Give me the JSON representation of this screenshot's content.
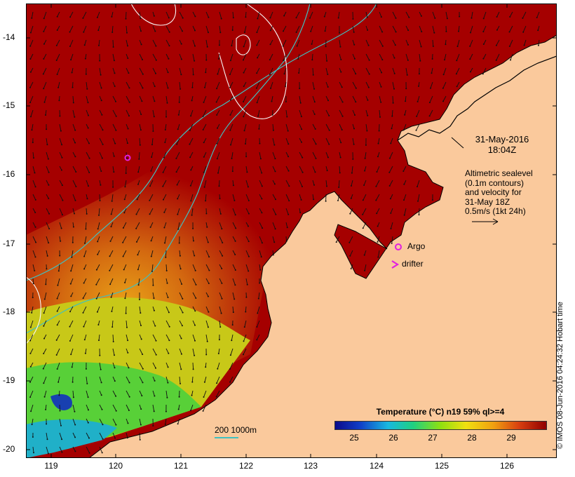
{
  "map": {
    "y_axis_ticks": [
      "-14",
      "-15",
      "-16",
      "-17",
      "-18",
      "-19",
      "-20"
    ],
    "x_axis_ticks": [
      "119",
      "120",
      "121",
      "122",
      "123",
      "124",
      "125",
      "126"
    ],
    "date_line1": "31-May-2016",
    "date_line2": "18:04Z",
    "altimetry_lines": [
      "Altimetric sealevel",
      "(0.1m contours)",
      "and velocity for",
      "31-May 18Z",
      "0.5m/s (1kt 24h)"
    ],
    "argo_label": "Argo",
    "drifter_label": "drifter",
    "scale_label": "200  1000m",
    "credit": "© IMOS 08-Jun-2016 04:24:32 Hobart time",
    "colors": {
      "land": "#fac99c",
      "hot": "#a50000",
      "isobath": "#40c0c0",
      "contour": "#f8f8f8",
      "marker": "#e020e0"
    }
  },
  "legend": {
    "title": "Temperature (°C) n19 59% ql>=4",
    "ticks": [
      "25",
      "26",
      "27",
      "28",
      "29"
    ],
    "range": [
      24.5,
      29.9
    ]
  }
}
